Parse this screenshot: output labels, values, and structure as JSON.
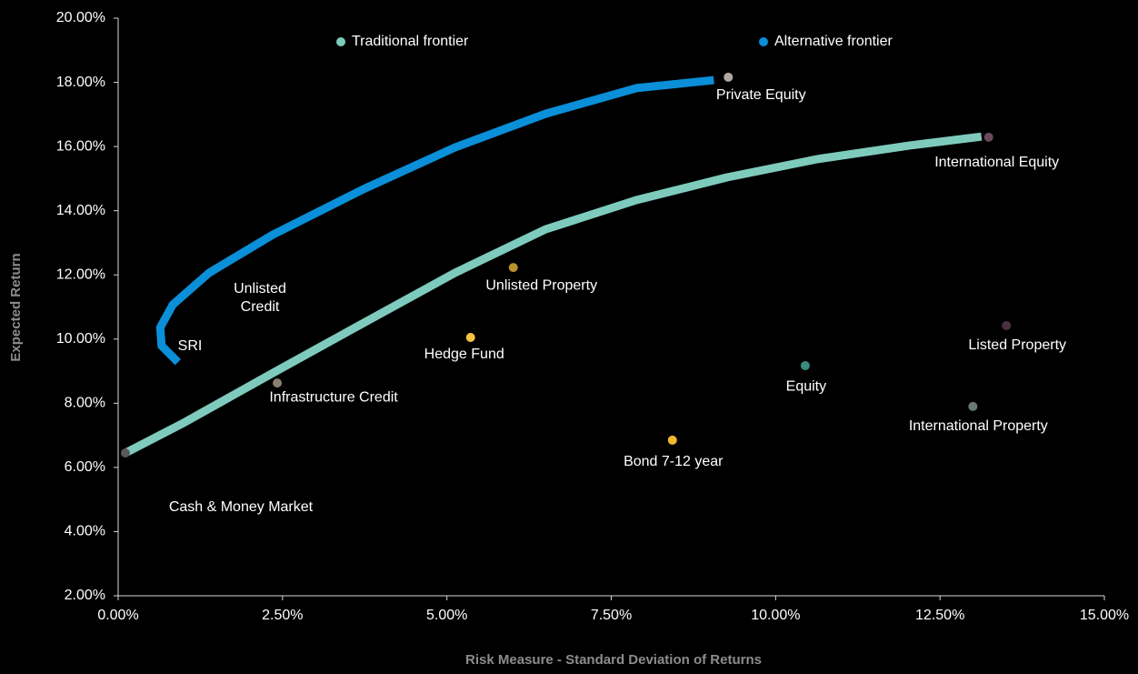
{
  "chart_data": {
    "type": "scatter",
    "x_label": "Risk Measure - Standard Deviation of Returns",
    "y_label": "Expected Return",
    "xlim": [
      0,
      15
    ],
    "ylim": [
      2,
      20
    ],
    "xticks": [
      {
        "value": 0,
        "label": "0.00%"
      },
      {
        "value": 2.5,
        "label": "2.50%"
      },
      {
        "value": 5,
        "label": "5.00%"
      },
      {
        "value": 7.5,
        "label": "7.50%"
      },
      {
        "value": 10,
        "label": "10.00%"
      },
      {
        "value": 12.5,
        "label": "12.50%"
      },
      {
        "value": 15,
        "label": "15.00%"
      }
    ],
    "yticks": [
      {
        "value": 2,
        "label": "2.00%"
      },
      {
        "value": 4,
        "label": "4.00%"
      },
      {
        "value": 6,
        "label": "6.00%"
      },
      {
        "value": 8,
        "label": "8.00%"
      },
      {
        "value": 10,
        "label": "10.00%"
      },
      {
        "value": 12,
        "label": "12.00%"
      },
      {
        "value": 14,
        "label": "14.00%"
      },
      {
        "value": 16,
        "label": "16.00%"
      },
      {
        "value": 18,
        "label": "18.00%"
      },
      {
        "value": 20,
        "label": "20.00%"
      }
    ],
    "series": [
      {
        "name": "Traditional frontier",
        "color": "#7ecbbd",
        "x": [
          0.11,
          0.97,
          2.35,
          3.73,
          5.12,
          6.5,
          7.88,
          9.26,
          10.64,
          12.03,
          13.13
        ],
        "y": [
          6.45,
          7.36,
          8.94,
          10.5,
          12.06,
          13.42,
          14.33,
          15.04,
          15.61,
          16.03,
          16.31
        ]
      },
      {
        "name": "Alternative frontier",
        "color": "#0a8fd8",
        "x": [
          0.91,
          0.66,
          0.64,
          0.83,
          1.38,
          2.35,
          3.73,
          5.12,
          6.5,
          7.88,
          9.06
        ],
        "y": [
          9.28,
          9.79,
          10.36,
          11.07,
          12.06,
          13.25,
          14.67,
          15.97,
          17.02,
          17.82,
          18.07
        ]
      }
    ],
    "points": [
      {
        "name": "Cash & Money Market",
        "x": 0.11,
        "y": 6.45,
        "color": "#5a5a5a"
      },
      {
        "name": "Infrastructure Credit",
        "x": 2.42,
        "y": 8.63,
        "color": "#8a8070"
      },
      {
        "name": "Hedge Fund",
        "x": 5.36,
        "y": 10.05,
        "color": "#f5c242"
      },
      {
        "name": "Unlisted Property",
        "x": 6.01,
        "y": 12.23,
        "color": "#b8942a"
      },
      {
        "name": "Bond 7-12 year",
        "x": 8.43,
        "y": 6.85,
        "color": "#f0b830"
      },
      {
        "name": "Private Equity",
        "x": 9.28,
        "y": 18.16,
        "color": "#b0a8a0"
      },
      {
        "name": "Equity",
        "x": 10.45,
        "y": 9.17,
        "color": "#3a8a80"
      },
      {
        "name": "International Equity",
        "x": 13.24,
        "y": 16.29,
        "color": "#6a4a5a"
      },
      {
        "name": "Listed Property",
        "x": 13.51,
        "y": 10.42,
        "color": "#4a3040"
      },
      {
        "name": "International Property",
        "x": 13.0,
        "y": 7.9,
        "color": "#6a7a70"
      }
    ],
    "annotations": [
      "SRI",
      "Unlisted Credit"
    ]
  }
}
